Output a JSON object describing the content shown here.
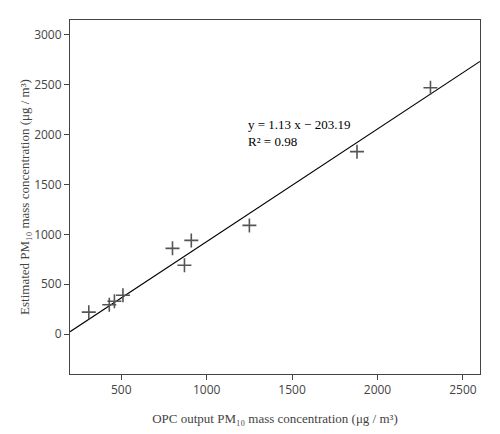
{
  "chart_data": {
    "type": "scatter",
    "xlabel": "OPC output PM₁₀ mass concentration (μg / m³)",
    "ylabel": "Estimated PM₁₀ mass concentration (μg / m³)",
    "xlim": [
      200,
      2600
    ],
    "ylim": [
      -400,
      3150
    ],
    "xticks": [
      500,
      1000,
      1500,
      2000,
      2500
    ],
    "yticks": [
      0,
      500,
      1000,
      1500,
      2000,
      2500,
      3000
    ],
    "grid": false,
    "series": [
      {
        "type": "line",
        "line_style": "solid",
        "color": "#000000",
        "x": [
          200,
          2600
        ],
        "values": [
          22.81,
          2734.81
        ]
      },
      {
        "type": "scatter",
        "marker": "+",
        "color": "#555555",
        "x": [
          310,
          430,
          460,
          510,
          800,
          870,
          910,
          1250,
          1880,
          2310
        ],
        "values": [
          220,
          295,
          330,
          390,
          860,
          690,
          940,
          1090,
          1830,
          2470
        ]
      }
    ],
    "annotations": [
      {
        "text": [
          "y = 1.13 x − 203.19",
          "R² = 0.98"
        ],
        "x": 1230,
        "y": 2200
      }
    ]
  }
}
